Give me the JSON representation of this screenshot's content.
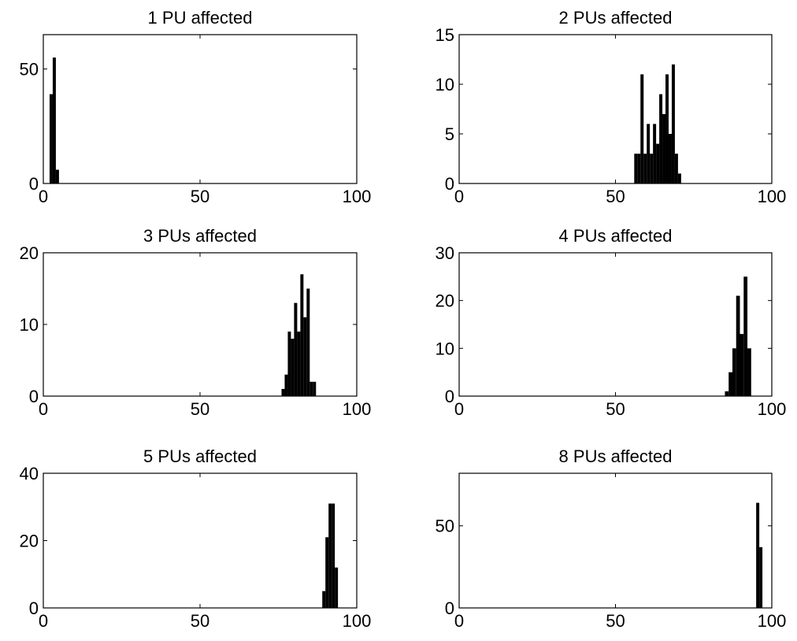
{
  "chart_data": [
    {
      "type": "histogram",
      "title": "1 PU affected",
      "bins": [
        2,
        3,
        4,
        5
      ],
      "values": [
        39,
        55,
        6
      ],
      "color": "#000000",
      "xlim": [
        0,
        100
      ],
      "ylim": [
        0,
        65
      ],
      "xticks": [
        0,
        50,
        100
      ],
      "yticks": [
        0,
        50
      ]
    },
    {
      "type": "histogram",
      "title": "2 PUs affected",
      "bins": [
        56,
        57,
        58,
        59,
        60,
        61,
        62,
        63,
        64,
        65,
        66,
        67,
        68,
        69,
        70,
        71
      ],
      "values": [
        3,
        3,
        11,
        3,
        6,
        3,
        6,
        4,
        9,
        7,
        11,
        5,
        12,
        3,
        1
      ],
      "color": "#000000",
      "xlim": [
        0,
        100
      ],
      "ylim": [
        0,
        15
      ],
      "xticks": [
        0,
        50,
        100
      ],
      "yticks": [
        0,
        5,
        10,
        15
      ]
    },
    {
      "type": "histogram",
      "title": "3 PUs affected",
      "bins": [
        76,
        77,
        78,
        79,
        80,
        81,
        82,
        83,
        84,
        85,
        86,
        87
      ],
      "values": [
        1,
        3,
        9,
        8,
        13,
        9,
        17,
        11,
        15,
        2,
        2
      ],
      "color": "#000000",
      "xlim": [
        0,
        100
      ],
      "ylim": [
        0,
        20
      ],
      "xticks": [
        0,
        50,
        100
      ],
      "yticks": [
        0,
        10,
        20
      ]
    },
    {
      "type": "histogram",
      "title": "4 PUs affected",
      "bins": [
        85,
        86.2,
        87.4,
        88.6,
        89.8,
        91,
        92.2,
        93.4
      ],
      "values": [
        1,
        5,
        10,
        21,
        13,
        25,
        10
      ],
      "color": "#000000",
      "xlim": [
        0,
        100
      ],
      "ylim": [
        0,
        30
      ],
      "xticks": [
        0,
        50,
        100
      ],
      "yticks": [
        0,
        10,
        20,
        30
      ]
    },
    {
      "type": "histogram",
      "title": "5 PUs affected",
      "bins": [
        89,
        90,
        91,
        92,
        93,
        94
      ],
      "values": [
        5,
        21,
        31,
        31,
        12
      ],
      "color": "#000000",
      "xlim": [
        0,
        100
      ],
      "ylim": [
        0,
        40
      ],
      "xticks": [
        0,
        50,
        100
      ],
      "yticks": [
        0,
        20,
        40
      ]
    },
    {
      "type": "histogram",
      "title": "8 PUs affected",
      "bins": [
        95,
        96,
        97
      ],
      "values": [
        64,
        37
      ],
      "color": "#000000",
      "xlim": [
        0,
        100
      ],
      "ylim": [
        0,
        82
      ],
      "xticks": [
        0,
        50,
        100
      ],
      "yticks": [
        0,
        50
      ]
    }
  ]
}
